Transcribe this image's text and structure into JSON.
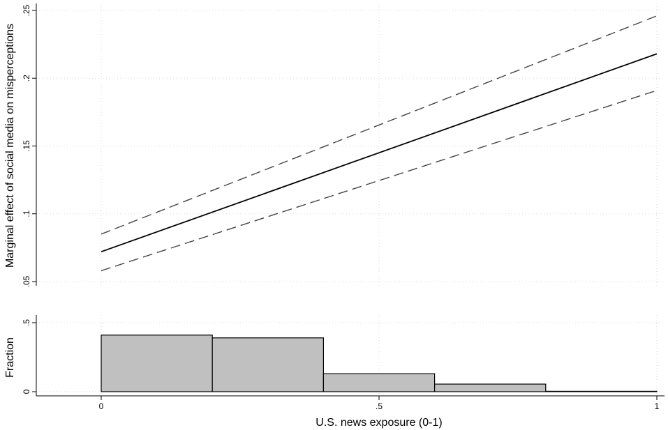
{
  "chart_data": [
    {
      "type": "line",
      "ylabel": "Marginal effect of social media on misperceptions",
      "ylim": [
        0.05,
        0.25
      ],
      "xlim": [
        0,
        1
      ],
      "y_ticks": [
        {
          "value": 0.05,
          "label": ".05"
        },
        {
          "value": 0.1,
          "label": ".1"
        },
        {
          "value": 0.15,
          "label": ".15"
        },
        {
          "value": 0.2,
          "label": ".2"
        },
        {
          "value": 0.25,
          "label": ".25"
        }
      ],
      "grid": true,
      "x": [
        0,
        1
      ],
      "series": [
        {
          "role": "estimate",
          "style": "solid",
          "values": [
            0.072,
            0.218
          ]
        },
        {
          "role": "upper-ci",
          "style": "dashed",
          "values": [
            0.085,
            0.246
          ]
        },
        {
          "role": "lower-ci",
          "style": "dashed",
          "values": [
            0.058,
            0.191
          ]
        }
      ]
    },
    {
      "type": "bar",
      "subtype": "histogram",
      "ylabel": "Fraction",
      "xlabel": "U.S. news exposure (0-1)",
      "xlim": [
        0,
        1
      ],
      "ylim": [
        0,
        0.5
      ],
      "y_ticks": [
        {
          "value": 0,
          "label": "0"
        },
        {
          "value": 0.5,
          "label": ".5"
        }
      ],
      "x_ticks": [
        {
          "value": 0,
          "label": "0"
        },
        {
          "value": 0.5,
          "label": ".5"
        },
        {
          "value": 1,
          "label": "1"
        }
      ],
      "grid": true,
      "bar_color": "#c0c0c0",
      "bins": [
        {
          "start": 0,
          "end": 0.2,
          "value": 0.41
        },
        {
          "start": 0.2,
          "end": 0.4,
          "value": 0.39
        },
        {
          "start": 0.4,
          "end": 0.6,
          "value": 0.13
        },
        {
          "start": 0.6,
          "end": 0.8,
          "value": 0.055
        },
        {
          "start": 0.8,
          "end": 1.0,
          "value": 0.003
        }
      ]
    }
  ]
}
